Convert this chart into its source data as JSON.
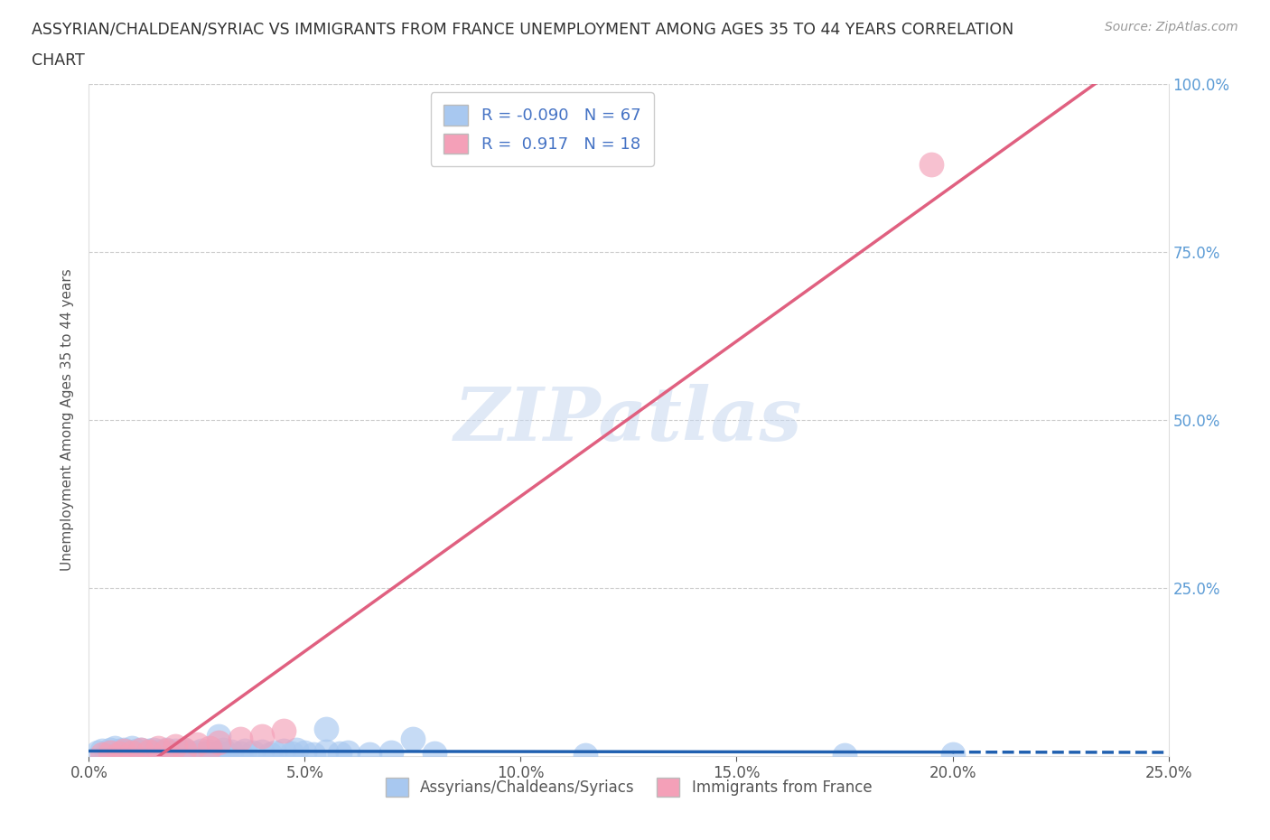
{
  "title_line1": "ASSYRIAN/CHALDEAN/SYRIAC VS IMMIGRANTS FROM FRANCE UNEMPLOYMENT AMONG AGES 35 TO 44 YEARS CORRELATION",
  "title_line2": "CHART",
  "source": "Source: ZipAtlas.com",
  "ylabel": "Unemployment Among Ages 35 to 44 years",
  "xlim": [
    0.0,
    0.25
  ],
  "ylim": [
    0.0,
    1.0
  ],
  "xtick_labels": [
    "0.0%",
    "5.0%",
    "10.0%",
    "15.0%",
    "20.0%",
    "25.0%"
  ],
  "xtick_values": [
    0.0,
    0.05,
    0.1,
    0.15,
    0.2,
    0.25
  ],
  "ytick_labels": [
    "25.0%",
    "50.0%",
    "75.0%",
    "100.0%"
  ],
  "ytick_values": [
    0.25,
    0.5,
    0.75,
    1.0
  ],
  "blue_R": -0.09,
  "blue_N": 67,
  "pink_R": 0.917,
  "pink_N": 18,
  "blue_color": "#A8C8F0",
  "pink_color": "#F4A0B8",
  "blue_line_color": "#2060B0",
  "pink_line_color": "#E06080",
  "legend_label_blue": "Assyrians/Chaldeans/Syriacs",
  "legend_label_pink": "Immigrants from France",
  "blue_points_x": [
    0.002,
    0.003,
    0.004,
    0.005,
    0.005,
    0.006,
    0.006,
    0.007,
    0.007,
    0.008,
    0.008,
    0.009,
    0.009,
    0.01,
    0.01,
    0.011,
    0.011,
    0.012,
    0.012,
    0.013,
    0.013,
    0.014,
    0.015,
    0.015,
    0.016,
    0.016,
    0.017,
    0.018,
    0.018,
    0.019,
    0.02,
    0.021,
    0.022,
    0.022,
    0.023,
    0.024,
    0.025,
    0.026,
    0.027,
    0.028,
    0.03,
    0.031,
    0.032,
    0.033,
    0.035,
    0.036,
    0.038,
    0.04,
    0.042,
    0.043,
    0.045,
    0.047,
    0.048,
    0.05,
    0.052,
    0.055,
    0.058,
    0.06,
    0.065,
    0.07,
    0.08,
    0.115,
    0.175,
    0.2,
    0.03,
    0.055,
    0.075
  ],
  "blue_points_y": [
    0.005,
    0.008,
    0.004,
    0.006,
    0.01,
    0.004,
    0.012,
    0.003,
    0.008,
    0.005,
    0.01,
    0.004,
    0.007,
    0.006,
    0.012,
    0.005,
    0.008,
    0.004,
    0.01,
    0.006,
    0.003,
    0.008,
    0.005,
    0.01,
    0.004,
    0.007,
    0.006,
    0.003,
    0.009,
    0.005,
    0.008,
    0.004,
    0.007,
    0.01,
    0.005,
    0.003,
    0.006,
    0.008,
    0.004,
    0.007,
    0.005,
    0.01,
    0.003,
    0.007,
    0.004,
    0.008,
    0.005,
    0.007,
    0.003,
    0.006,
    0.008,
    0.004,
    0.01,
    0.005,
    0.003,
    0.007,
    0.004,
    0.006,
    0.003,
    0.005,
    0.004,
    0.002,
    0.002,
    0.003,
    0.03,
    0.04,
    0.025
  ],
  "pink_points_x": [
    0.003,
    0.005,
    0.007,
    0.008,
    0.01,
    0.012,
    0.014,
    0.016,
    0.018,
    0.02,
    0.022,
    0.025,
    0.028,
    0.03,
    0.035,
    0.04,
    0.045,
    0.195
  ],
  "pink_points_y": [
    0.003,
    0.005,
    0.004,
    0.008,
    0.006,
    0.01,
    0.007,
    0.012,
    0.008,
    0.015,
    0.01,
    0.018,
    0.012,
    0.02,
    0.025,
    0.03,
    0.038,
    0.88
  ],
  "background_color": "#FFFFFF",
  "grid_color": "#CCCCCC",
  "watermark_text": "ZIPatlas",
  "watermark_color": "#C8D8F0"
}
